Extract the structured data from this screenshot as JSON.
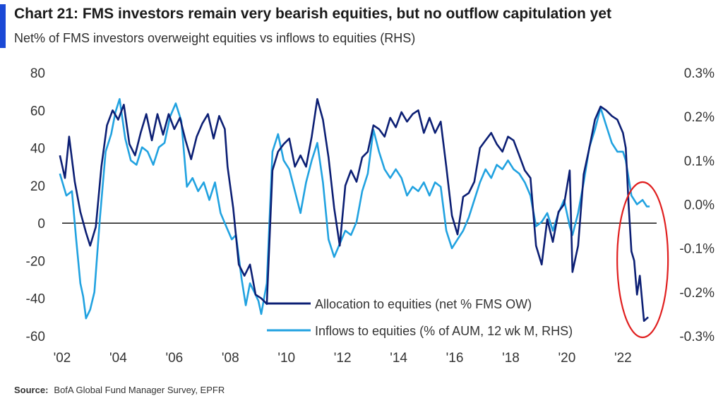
{
  "title": "Chart 21: FMS investors remain very bearish equities, but no outflow capitulation yet",
  "subtitle": "Net% of FMS investors overweight equities vs inflows to equities (RHS)",
  "source_label": "Source:",
  "source_text": "BofA Global Fund Manager Survey, EPFR",
  "colors": {
    "allocation": "#0c1f74",
    "inflows": "#21a2e0",
    "annotation": "#e01f1f",
    "accent": "#1b49d6"
  },
  "chart_data": {
    "type": "line",
    "x_ticks": [
      "'02",
      "'04",
      "'06",
      "'08",
      "'10",
      "'12",
      "'14",
      "'16",
      "'18",
      "'20",
      "'22"
    ],
    "x_range": [
      2002,
      2023.2
    ],
    "y_left": {
      "range": [
        -60,
        80
      ],
      "ticks": [
        "80",
        "60",
        "40",
        "20",
        "0",
        "-20",
        "-40",
        "-60"
      ],
      "tick_values": [
        80,
        60,
        40,
        20,
        0,
        -20,
        -40,
        -60
      ]
    },
    "y_right": {
      "range": [
        -0.3,
        0.3
      ],
      "ticks": [
        "0.3%",
        "0.2%",
        "0.1%",
        "0.0%",
        "-0.1%",
        "-0.2%",
        "-0.3%"
      ],
      "tick_values": [
        0.3,
        0.2,
        0.1,
        0.0,
        -0.1,
        -0.2,
        -0.3
      ]
    },
    "annotation": "circle highlighting 2022 readings",
    "series": [
      {
        "name": "Allocation to equities (net % FMS OW)",
        "axis": "left",
        "points": [
          [
            2001.92,
            36
          ],
          [
            2002.1,
            24
          ],
          [
            2002.25,
            46
          ],
          [
            2002.45,
            22
          ],
          [
            2002.65,
            6
          ],
          [
            2002.85,
            -5
          ],
          [
            2003.0,
            -12
          ],
          [
            2003.2,
            -2
          ],
          [
            2003.4,
            30
          ],
          [
            2003.6,
            52
          ],
          [
            2003.8,
            60
          ],
          [
            2004.0,
            55
          ],
          [
            2004.2,
            63
          ],
          [
            2004.4,
            42
          ],
          [
            2004.6,
            36
          ],
          [
            2004.8,
            48
          ],
          [
            2005.0,
            58
          ],
          [
            2005.2,
            44
          ],
          [
            2005.4,
            58
          ],
          [
            2005.6,
            47
          ],
          [
            2005.8,
            58
          ],
          [
            2006.0,
            50
          ],
          [
            2006.2,
            56
          ],
          [
            2006.4,
            44
          ],
          [
            2006.6,
            34
          ],
          [
            2006.8,
            46
          ],
          [
            2007.0,
            53
          ],
          [
            2007.2,
            58
          ],
          [
            2007.4,
            45
          ],
          [
            2007.6,
            57
          ],
          [
            2007.8,
            50
          ],
          [
            2007.9,
            30
          ],
          [
            2008.1,
            8
          ],
          [
            2008.3,
            -22
          ],
          [
            2008.5,
            -28
          ],
          [
            2008.7,
            -22
          ],
          [
            2008.9,
            -38
          ],
          [
            2009.1,
            -40
          ],
          [
            2009.3,
            -43
          ],
          [
            2009.5,
            28
          ],
          [
            2009.7,
            38
          ],
          [
            2009.9,
            42
          ],
          [
            2010.1,
            45
          ],
          [
            2010.3,
            30
          ],
          [
            2010.5,
            36
          ],
          [
            2010.7,
            30
          ],
          [
            2010.9,
            46
          ],
          [
            2011.1,
            66
          ],
          [
            2011.3,
            55
          ],
          [
            2011.5,
            35
          ],
          [
            2011.7,
            8
          ],
          [
            2011.9,
            -12
          ],
          [
            2012.1,
            20
          ],
          [
            2012.3,
            28
          ],
          [
            2012.5,
            22
          ],
          [
            2012.7,
            35
          ],
          [
            2012.9,
            38
          ],
          [
            2013.1,
            52
          ],
          [
            2013.3,
            50
          ],
          [
            2013.5,
            46
          ],
          [
            2013.7,
            56
          ],
          [
            2013.9,
            51
          ],
          [
            2014.1,
            59
          ],
          [
            2014.3,
            54
          ],
          [
            2014.5,
            58
          ],
          [
            2014.7,
            60
          ],
          [
            2014.9,
            48
          ],
          [
            2015.1,
            56
          ],
          [
            2015.3,
            48
          ],
          [
            2015.5,
            54
          ],
          [
            2015.7,
            30
          ],
          [
            2015.9,
            4
          ],
          [
            2016.1,
            -6
          ],
          [
            2016.3,
            14
          ],
          [
            2016.5,
            16
          ],
          [
            2016.7,
            22
          ],
          [
            2016.9,
            40
          ],
          [
            2017.1,
            44
          ],
          [
            2017.3,
            48
          ],
          [
            2017.5,
            42
          ],
          [
            2017.7,
            38
          ],
          [
            2017.9,
            46
          ],
          [
            2018.1,
            44
          ],
          [
            2018.3,
            36
          ],
          [
            2018.5,
            28
          ],
          [
            2018.7,
            24
          ],
          [
            2018.9,
            -12
          ],
          [
            2019.1,
            -22
          ],
          [
            2019.3,
            2
          ],
          [
            2019.5,
            -10
          ],
          [
            2019.7,
            6
          ],
          [
            2019.9,
            10
          ],
          [
            2020.1,
            28
          ],
          [
            2020.2,
            -26
          ],
          [
            2020.4,
            -12
          ],
          [
            2020.6,
            26
          ],
          [
            2020.8,
            40
          ],
          [
            2021.0,
            55
          ],
          [
            2021.2,
            62
          ],
          [
            2021.4,
            60
          ],
          [
            2021.6,
            57
          ],
          [
            2021.8,
            55
          ],
          [
            2022.0,
            48
          ],
          [
            2022.1,
            40
          ],
          [
            2022.2,
            10
          ],
          [
            2022.3,
            -15
          ],
          [
            2022.4,
            -20
          ],
          [
            2022.5,
            -38
          ],
          [
            2022.6,
            -28
          ],
          [
            2022.75,
            -52
          ],
          [
            2022.9,
            -50
          ]
        ]
      },
      {
        "name": "Inflows to equities (% of AUM, 12 wk M, RHS)",
        "axis": "right",
        "points": [
          [
            2001.92,
            0.07
          ],
          [
            2002.15,
            0.02
          ],
          [
            2002.35,
            0.03
          ],
          [
            2002.5,
            -0.08
          ],
          [
            2002.65,
            -0.18
          ],
          [
            2002.75,
            -0.21
          ],
          [
            2002.85,
            -0.26
          ],
          [
            2003.0,
            -0.24
          ],
          [
            2003.15,
            -0.2
          ],
          [
            2003.35,
            -0.03
          ],
          [
            2003.55,
            0.12
          ],
          [
            2003.75,
            0.16
          ],
          [
            2003.9,
            0.21
          ],
          [
            2004.05,
            0.24
          ],
          [
            2004.25,
            0.15
          ],
          [
            2004.45,
            0.1
          ],
          [
            2004.65,
            0.09
          ],
          [
            2004.85,
            0.13
          ],
          [
            2005.05,
            0.12
          ],
          [
            2005.25,
            0.09
          ],
          [
            2005.45,
            0.13
          ],
          [
            2005.65,
            0.14
          ],
          [
            2005.85,
            0.2
          ],
          [
            2006.05,
            0.23
          ],
          [
            2006.25,
            0.19
          ],
          [
            2006.45,
            0.04
          ],
          [
            2006.65,
            0.06
          ],
          [
            2006.85,
            0.03
          ],
          [
            2007.05,
            0.05
          ],
          [
            2007.25,
            0.01
          ],
          [
            2007.45,
            0.05
          ],
          [
            2007.65,
            -0.02
          ],
          [
            2007.85,
            -0.05
          ],
          [
            2008.05,
            -0.08
          ],
          [
            2008.2,
            -0.07
          ],
          [
            2008.4,
            -0.17
          ],
          [
            2008.55,
            -0.23
          ],
          [
            2008.7,
            -0.18
          ],
          [
            2008.85,
            -0.2
          ],
          [
            2009.0,
            -0.22
          ],
          [
            2009.1,
            -0.25
          ],
          [
            2009.3,
            -0.18
          ],
          [
            2009.5,
            0.12
          ],
          [
            2009.7,
            0.16
          ],
          [
            2009.9,
            0.1
          ],
          [
            2010.1,
            0.08
          ],
          [
            2010.3,
            0.03
          ],
          [
            2010.5,
            -0.02
          ],
          [
            2010.7,
            0.05
          ],
          [
            2010.9,
            0.1
          ],
          [
            2011.1,
            0.14
          ],
          [
            2011.3,
            0.05
          ],
          [
            2011.5,
            -0.08
          ],
          [
            2011.7,
            -0.12
          ],
          [
            2011.9,
            -0.09
          ],
          [
            2012.1,
            -0.06
          ],
          [
            2012.3,
            -0.07
          ],
          [
            2012.5,
            -0.04
          ],
          [
            2012.7,
            0.03
          ],
          [
            2012.9,
            0.07
          ],
          [
            2013.1,
            0.17
          ],
          [
            2013.3,
            0.12
          ],
          [
            2013.5,
            0.08
          ],
          [
            2013.7,
            0.06
          ],
          [
            2013.9,
            0.08
          ],
          [
            2014.1,
            0.06
          ],
          [
            2014.3,
            0.02
          ],
          [
            2014.5,
            0.04
          ],
          [
            2014.7,
            0.03
          ],
          [
            2014.9,
            0.05
          ],
          [
            2015.1,
            0.02
          ],
          [
            2015.3,
            0.05
          ],
          [
            2015.5,
            0.04
          ],
          [
            2015.7,
            -0.06
          ],
          [
            2015.9,
            -0.1
          ],
          [
            2016.1,
            -0.08
          ],
          [
            2016.3,
            -0.06
          ],
          [
            2016.5,
            -0.03
          ],
          [
            2016.7,
            0.01
          ],
          [
            2016.9,
            0.05
          ],
          [
            2017.1,
            0.08
          ],
          [
            2017.3,
            0.06
          ],
          [
            2017.5,
            0.09
          ],
          [
            2017.7,
            0.08
          ],
          [
            2017.9,
            0.1
          ],
          [
            2018.1,
            0.08
          ],
          [
            2018.3,
            0.07
          ],
          [
            2018.5,
            0.05
          ],
          [
            2018.7,
            0.02
          ],
          [
            2018.9,
            -0.05
          ],
          [
            2019.1,
            -0.04
          ],
          [
            2019.3,
            -0.02
          ],
          [
            2019.5,
            -0.06
          ],
          [
            2019.7,
            -0.02
          ],
          [
            2019.9,
            0.01
          ],
          [
            2020.1,
            -0.05
          ],
          [
            2020.2,
            -0.07
          ],
          [
            2020.4,
            -0.02
          ],
          [
            2020.6,
            0.05
          ],
          [
            2020.8,
            0.13
          ],
          [
            2021.0,
            0.17
          ],
          [
            2021.2,
            0.22
          ],
          [
            2021.4,
            0.18
          ],
          [
            2021.6,
            0.14
          ],
          [
            2021.8,
            0.12
          ],
          [
            2022.0,
            0.12
          ],
          [
            2022.1,
            0.1
          ],
          [
            2022.3,
            0.02
          ],
          [
            2022.5,
            0.0
          ],
          [
            2022.7,
            0.01
          ],
          [
            2022.85,
            -0.005
          ],
          [
            2022.95,
            -0.005
          ]
        ]
      }
    ]
  }
}
